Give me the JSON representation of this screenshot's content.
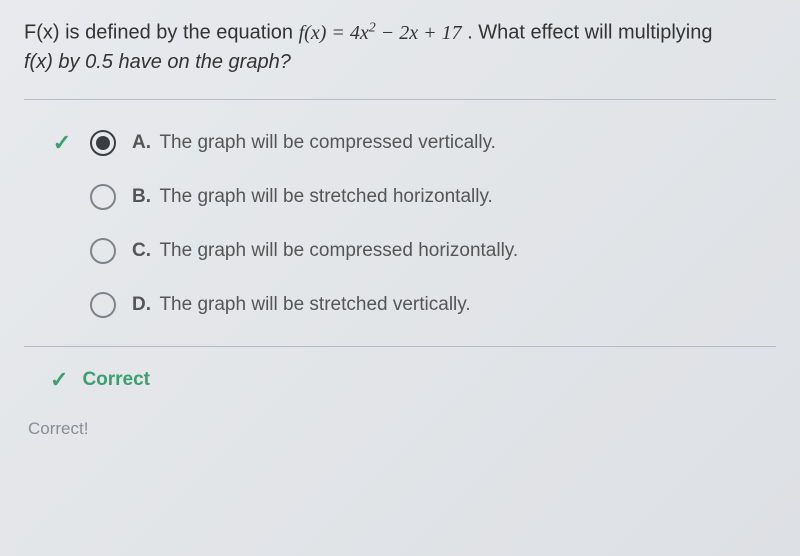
{
  "question": {
    "prefix": "F(x) is defined by the equation ",
    "equation_html": "f(x) = 4x² − 2x + 17",
    "suffix": " . What effect will multiplying ",
    "line2": "f(x) by 0.5 have on the graph?"
  },
  "options": [
    {
      "letter": "A.",
      "text": "The graph will be compressed vertically.",
      "selected": true,
      "correct": true
    },
    {
      "letter": "B.",
      "text": "The graph will be stretched horizontally.",
      "selected": false,
      "correct": false
    },
    {
      "letter": "C.",
      "text": "The graph will be compressed horizontally.",
      "selected": false,
      "correct": false
    },
    {
      "letter": "D.",
      "text": "The graph will be stretched vertically.",
      "selected": false,
      "correct": false
    }
  ],
  "feedback": {
    "status": "Correct",
    "footer": "Correct!"
  },
  "colors": {
    "accent_green": "#3aa072",
    "text_gray": "#555555",
    "divider": "#b8bcc2",
    "radio_border": "#808489",
    "radio_fill": "#3a3e42"
  },
  "typography": {
    "question_fontsize": 20,
    "option_fontsize": 19,
    "feedback_fontsize": 19
  }
}
